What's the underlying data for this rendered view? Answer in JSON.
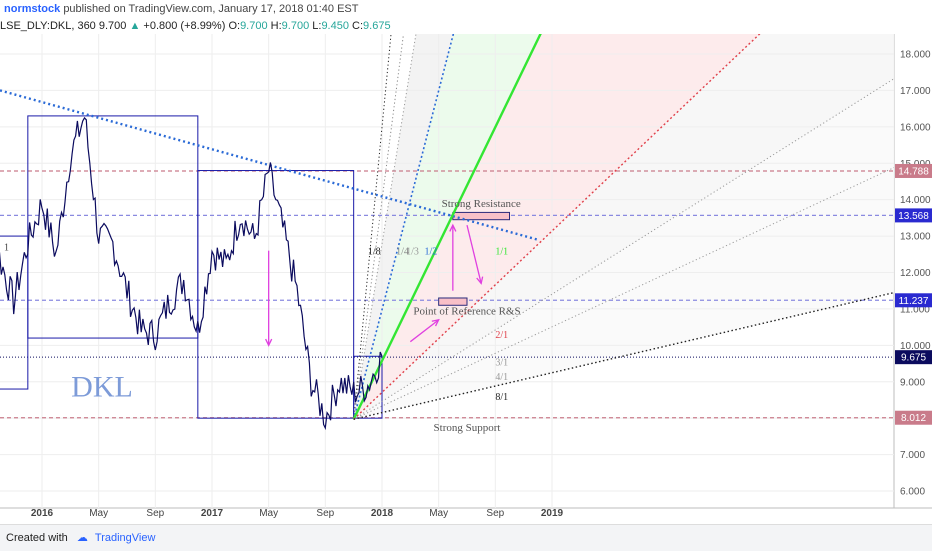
{
  "header": {
    "author": "normstock",
    "published_text": "published on TradingView.com, January 17, 2018 01:40 EST"
  },
  "symbol_bar": {
    "symbol": "LSE_DLY:DKL, 360",
    "last": "9.700",
    "change": "+0.800 (+8.99%)",
    "open_label": "O:",
    "open": "9.700",
    "high_label": "H:",
    "high": "9.700",
    "low_label": "L:",
    "low": "9.450",
    "close_label": "C:",
    "close": "9.675"
  },
  "footer": {
    "created_with": "Created with",
    "brand": "TradingView"
  },
  "colors": {
    "price": "#0b0b5e",
    "box": "#1a1aa8",
    "green": "#33e633",
    "blue_dotted": "#2a6ad6",
    "red_dotted": "#e0404a",
    "magenta": "#e040e0",
    "resistance_fill": "#f8c0c8",
    "support_fill": "#d0f5d0"
  },
  "chart_data": {
    "type": "line",
    "title": "DKL",
    "ylim": [
      5.7,
      18.4
    ],
    "y_ticks": [
      "6.000",
      "7.000",
      "8.000",
      "9.000",
      "10.000",
      "11.000",
      "12.000",
      "13.000",
      "14.000",
      "15.000",
      "16.000",
      "17.000",
      "18.000"
    ],
    "x_ticks": [
      "2016",
      "May",
      "Sep",
      "2017",
      "May",
      "Sep",
      "2018",
      "May",
      "Sep",
      "2019"
    ],
    "price_tags": [
      {
        "value": 14.788,
        "label": "14.788",
        "color": "#c97b8a"
      },
      {
        "value": 13.568,
        "label": "13.568",
        "color": "#2a2ad0"
      },
      {
        "value": 11.237,
        "label": "11.237",
        "color": "#2a2ad0"
      },
      {
        "value": 9.675,
        "label": "9.675",
        "color": "#0b0b5e"
      },
      {
        "value": 8.012,
        "label": "8.012",
        "color": "#c97b8a"
      }
    ],
    "series": [
      {
        "x": [
          "2015-08",
          "2015-09",
          "2015-10",
          "2015-11",
          "2015-12",
          "2016-01",
          "2016-02",
          "2016-03",
          "2016-04",
          "2016-05",
          "2016-06",
          "2016-07",
          "2016-08",
          "2016-09",
          "2016-10",
          "2016-11",
          "2016-12",
          "2017-01",
          "2017-02",
          "2017-03",
          "2017-04",
          "2017-05",
          "2017-06",
          "2017-07",
          "2017-08",
          "2017-09",
          "2017-10",
          "2017-11",
          "2017-12",
          "2018-01"
        ],
        "values": [
          9.6,
          10.8,
          12.4,
          11.2,
          12.8,
          13.9,
          12.5,
          15.2,
          16.3,
          13.0,
          12.8,
          11.5,
          10.4,
          10.3,
          11.2,
          11.8,
          10.4,
          12.6,
          12.2,
          13.6,
          12.9,
          14.8,
          13.2,
          11.5,
          9.0,
          8.0,
          9.0,
          8.7,
          8.9,
          9.7
        ]
      }
    ],
    "fan_labels": [
      "1/8",
      "1/4",
      "1/3",
      "1/2",
      "1/1",
      "2/1",
      "3/1",
      "4/1",
      "8/1"
    ],
    "annotations": [
      "Strong Resistance",
      "Point of Reference R&S",
      "Strong Support",
      "1"
    ]
  }
}
